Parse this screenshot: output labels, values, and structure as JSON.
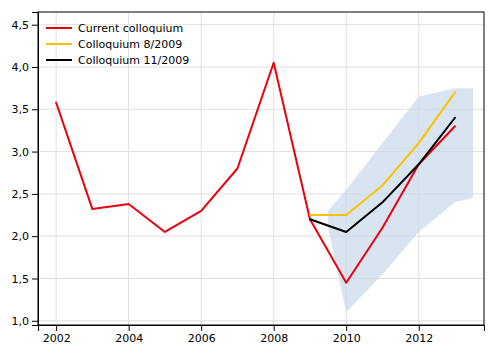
{
  "chart_data": {
    "type": "line",
    "series": [
      {
        "type": "band",
        "color": "#c8d8ea",
        "x": [
          2009.5,
          2010,
          2011,
          2012,
          2013,
          2013.5
        ],
        "upper": [
          2.3,
          2.55,
          3.1,
          3.65,
          3.75,
          3.75
        ],
        "lower": [
          2.1,
          1.1,
          1.55,
          2.05,
          2.4,
          2.45
        ]
      },
      {
        "name": "Current colloquium",
        "color": "#e8000d",
        "x": [
          2002,
          2003,
          2004,
          2005,
          2006,
          2007,
          2008,
          2009,
          2010,
          2011,
          2012,
          2013
        ],
        "values": [
          3.58,
          2.32,
          2.38,
          2.05,
          2.3,
          2.8,
          4.05,
          2.2,
          1.45,
          2.1,
          2.85,
          3.3
        ]
      },
      {
        "name": "Colloquium 8/2009",
        "color": "#ffc000",
        "x": [
          2009,
          2010,
          2011,
          2012,
          2013
        ],
        "values": [
          2.25,
          2.25,
          2.6,
          3.1,
          3.7
        ]
      },
      {
        "name": "Colloquium 11/2009",
        "color": "#000000",
        "x": [
          2009,
          2010,
          2011,
          2012,
          2013
        ],
        "values": [
          2.2,
          2.05,
          2.4,
          2.85,
          3.4
        ]
      }
    ],
    "xlim": [
      2001.5,
      2013.8
    ],
    "xticks": [
      2002,
      2004,
      2006,
      2008,
      2010,
      2012
    ],
    "ylim": [
      0.95,
      4.65
    ],
    "yticks": [
      {
        "value": 1.0,
        "label": "1,0"
      },
      {
        "value": 1.5,
        "label": "1,5"
      },
      {
        "value": 2.0,
        "label": "2,0"
      },
      {
        "value": 2.5,
        "label": "2,5"
      },
      {
        "value": 3.0,
        "label": "3,0"
      },
      {
        "value": 3.5,
        "label": "3,5"
      },
      {
        "value": 4.0,
        "label": "4,0"
      },
      {
        "value": 4.5,
        "label": "4,5"
      }
    ],
    "grid": true,
    "legend": "upper left"
  }
}
